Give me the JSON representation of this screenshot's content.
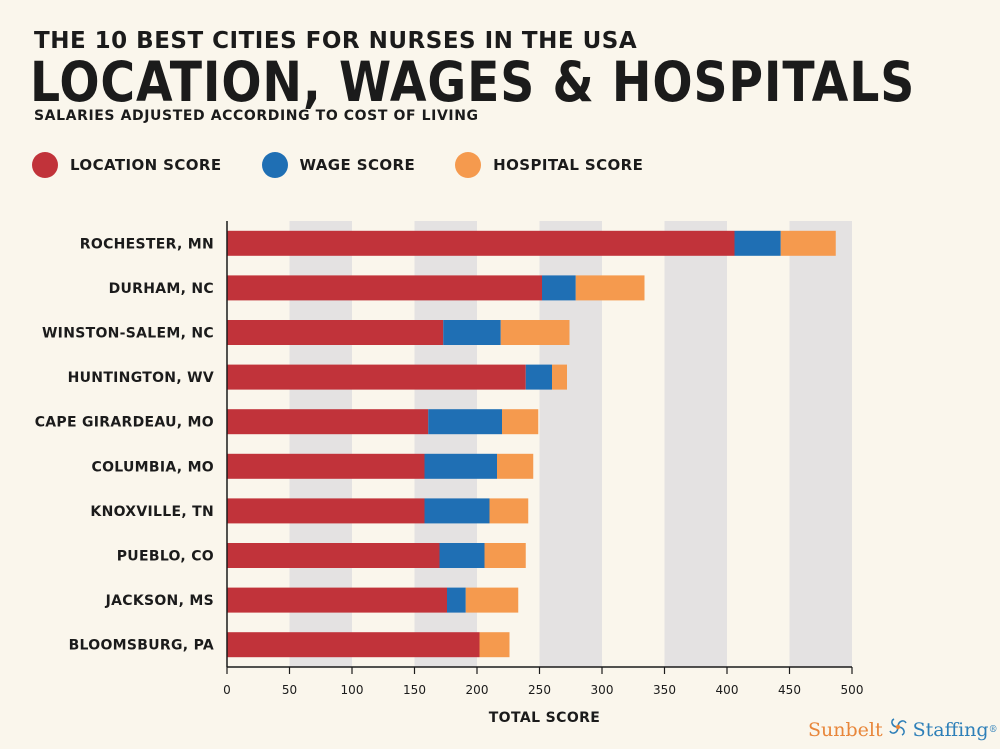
{
  "header": {
    "supertitle": "THE 10 BEST CITIES FOR NURSES IN THE USA",
    "title": "LOCATION, WAGES & HOSPITALS",
    "subtitle": "SALARIES ADJUSTED ACCORDING TO COST OF LIVING"
  },
  "legend": [
    {
      "label": "LOCATION SCORE",
      "color": "#c1333a"
    },
    {
      "label": "WAGE SCORE",
      "color": "#1f6fb4"
    },
    {
      "label": "HOSPITAL SCORE",
      "color": "#f59a4e"
    }
  ],
  "logo": {
    "part1": "Sunbelt",
    "part2": "Staffing",
    "mark": "®"
  },
  "chart_data": {
    "type": "bar",
    "orientation": "horizontal",
    "stacked": true,
    "categories": [
      "ROCHESTER, MN",
      "DURHAM, NC",
      "WINSTON-SALEM, NC",
      "HUNTINGTON, WV",
      "CAPE GIRARDEAU, MO",
      "COLUMBIA, MO",
      "KNOXVILLE, TN",
      "PUEBLO, CO",
      "JACKSON, MS",
      "BLOOMSBURG, PA"
    ],
    "series": [
      {
        "name": "LOCATION SCORE",
        "color": "#c1333a",
        "values": [
          406,
          252,
          173,
          239,
          161,
          158,
          158,
          170,
          176,
          202
        ]
      },
      {
        "name": "WAGE SCORE",
        "color": "#1f6fb4",
        "values": [
          37,
          27,
          46,
          21,
          59,
          58,
          52,
          36,
          15,
          0
        ]
      },
      {
        "name": "HOSPITAL SCORE",
        "color": "#f59a4e",
        "values": [
          44,
          55,
          55,
          12,
          29,
          29,
          31,
          33,
          42,
          24
        ]
      }
    ],
    "xlabel": "TOTAL SCORE",
    "xlim": [
      0,
      500
    ],
    "xticks": [
      0,
      50,
      100,
      150,
      200,
      250,
      300,
      350,
      400,
      450,
      500
    ],
    "grid": "alternating vertical bands"
  }
}
